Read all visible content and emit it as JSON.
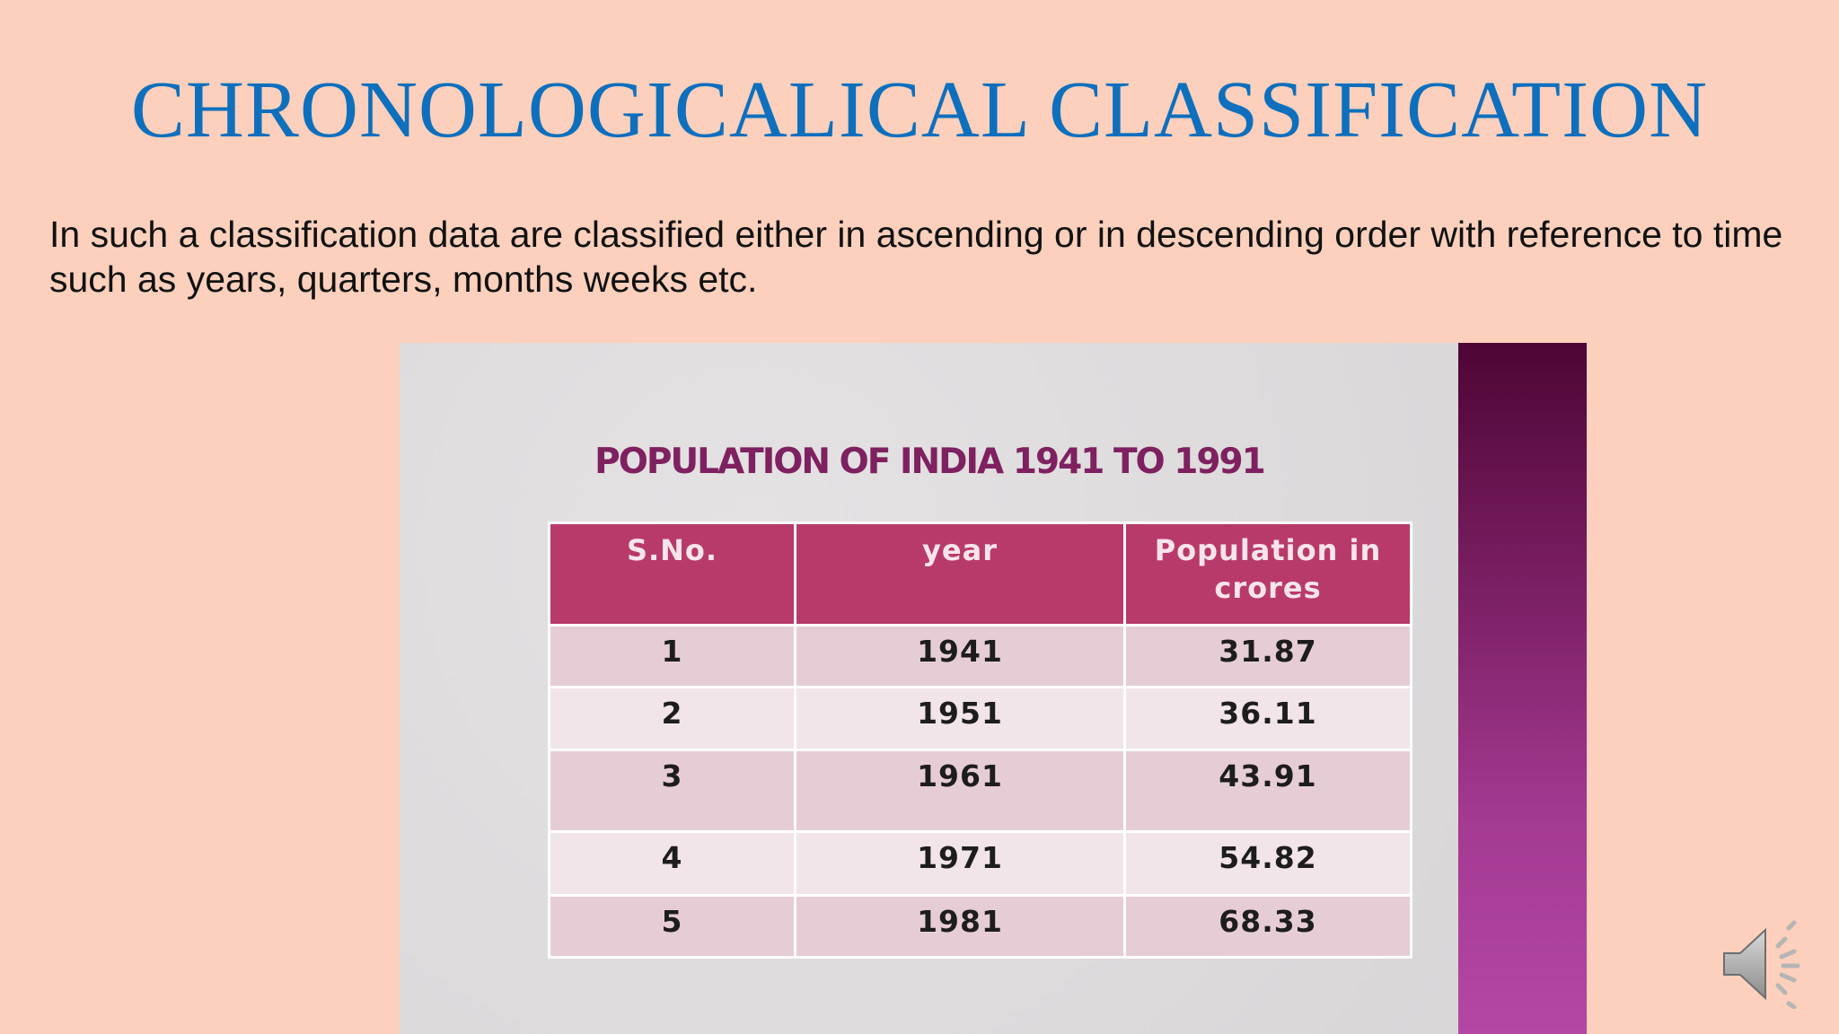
{
  "slide": {
    "title": "CHRONOLOGICALICAL CLASSIFICATION",
    "body": "In such a classification data are classified either in ascending or in descending order with reference to time such as years, quarters, months weeks etc."
  },
  "picture": {
    "table_title": "POPULATION OF INDIA 1941 TO 1991",
    "columns": [
      "S.No.",
      "year",
      "Population in crores"
    ],
    "rows": [
      [
        "1",
        "1941",
        "31.87"
      ],
      [
        "2",
        "1951",
        "36.11"
      ],
      [
        "3",
        "1961",
        "43.91"
      ],
      [
        "4",
        "1971",
        "54.82"
      ],
      [
        "5",
        "1981",
        "68.33"
      ]
    ]
  },
  "colors": {
    "background": "#fcd0bc",
    "title": "#0e6fbd",
    "table_header": "#b83a6b",
    "accent_bar": "#7a1f63"
  },
  "icons": {
    "audio": "speaker-icon"
  }
}
